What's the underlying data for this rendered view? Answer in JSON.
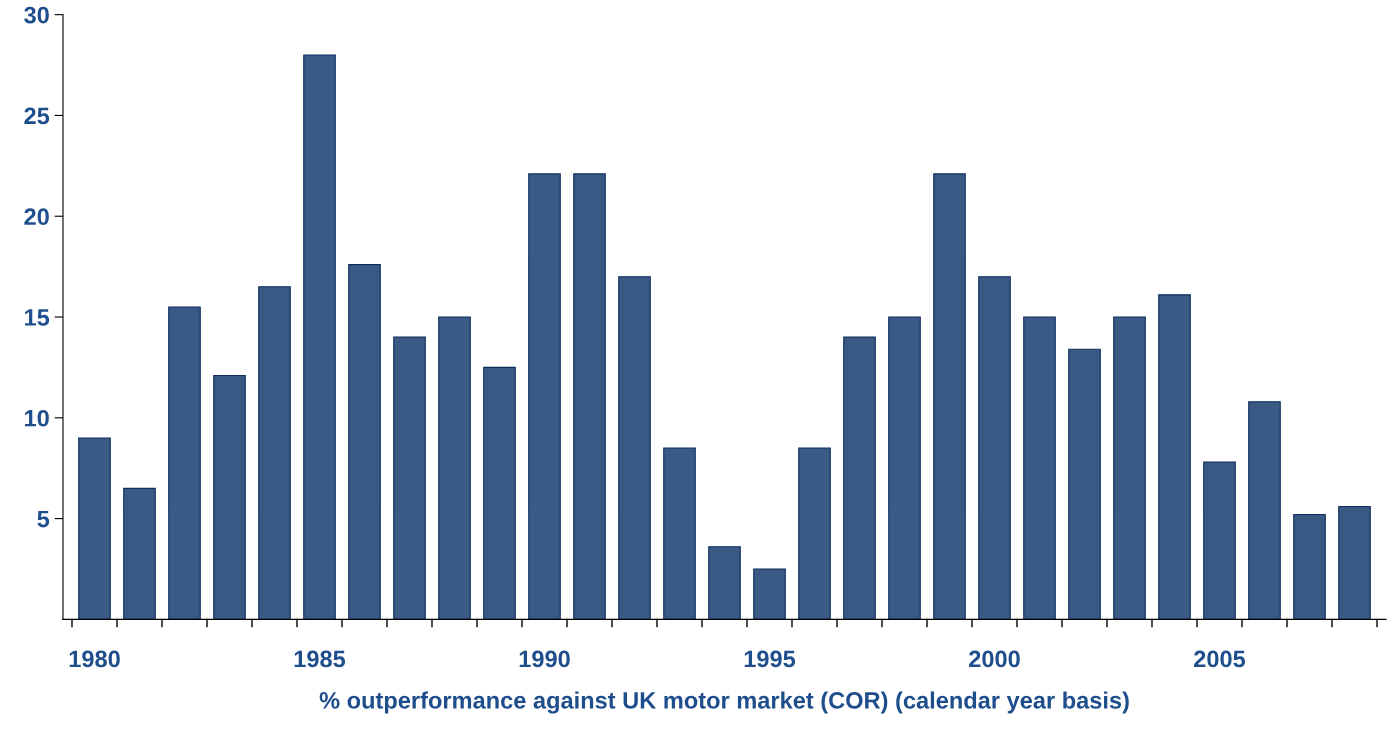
{
  "chart_data": {
    "type": "bar",
    "xlabel": "% outperformance against UK motor market (COR) (calendar year basis)",
    "categories": [
      "1980",
      null,
      null,
      null,
      null,
      "1985",
      null,
      null,
      null,
      null,
      "1990",
      null,
      null,
      null,
      null,
      "1995",
      null,
      null,
      null,
      null,
      "2000",
      null,
      null,
      null,
      null,
      "2005",
      null,
      null,
      null
    ],
    "values": [
      9,
      6.5,
      15.5,
      12.1,
      16.5,
      28,
      17.6,
      14,
      15,
      12.5,
      22.1,
      22.1,
      17,
      8.5,
      3.6,
      2.5,
      8.5,
      14,
      15,
      22.1,
      17,
      15,
      13.4,
      15,
      16.1,
      7.8,
      10.8,
      5.2,
      5.6
    ],
    "color": "#3a5a85",
    "ylim": [
      0,
      30
    ],
    "yticks": [
      5,
      10,
      15,
      20,
      25,
      30
    ],
    "grid": false,
    "legend": false
  }
}
